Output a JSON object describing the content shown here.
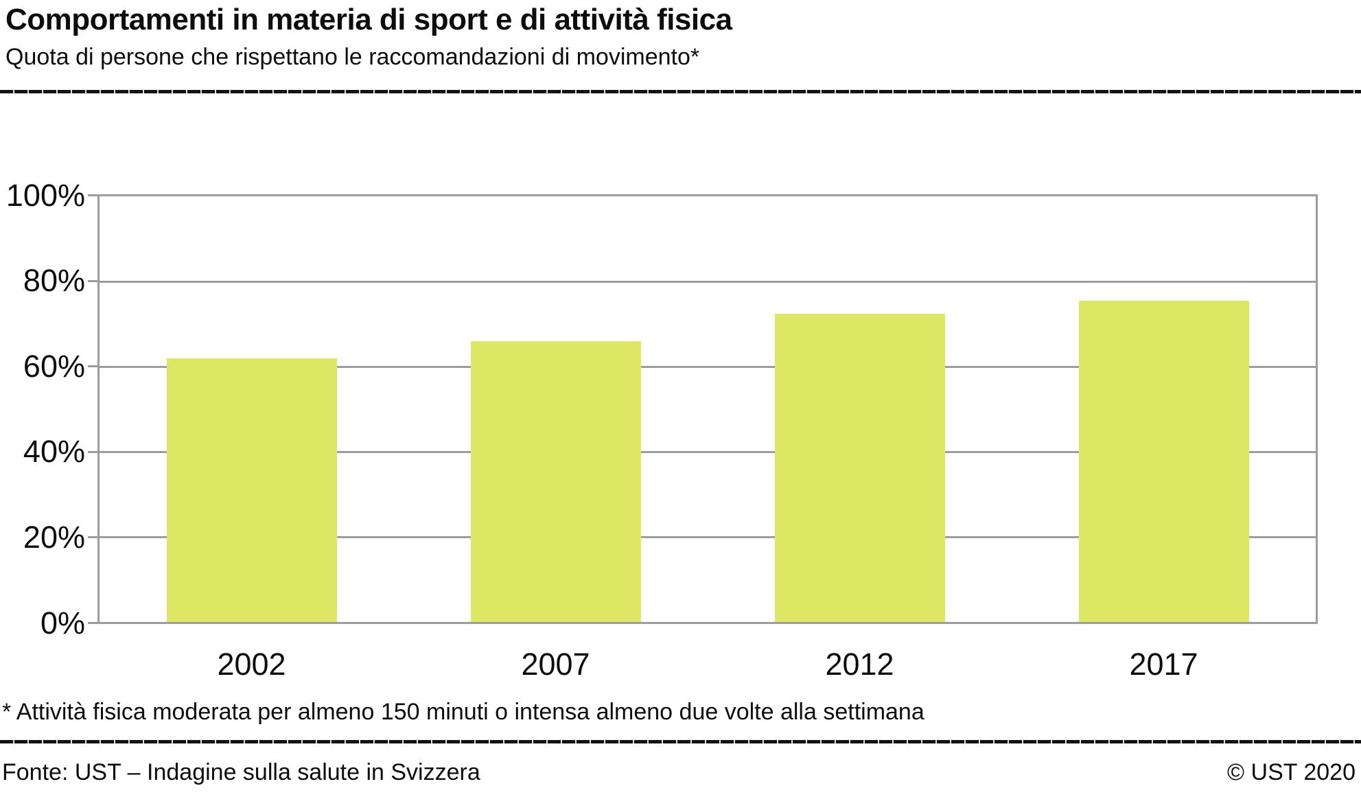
{
  "header": {
    "title": "Comportamenti in materia di sport e di attività fisica",
    "subtitle": "Quota di persone che rispettano le raccomandazioni di movimento*"
  },
  "footnote": "* Attività fisica moderata per almeno 150 minuti o intensa almeno due volte alla settimana",
  "footer": {
    "source": "Fonte: UST – Indagine sulla salute in Svizzera",
    "copyright": "© UST 2020"
  },
  "colors": {
    "bar": "#dde763",
    "grid": "#9d9d9d",
    "rule": "#121212",
    "text": "#0d0d0d"
  },
  "chart_data": {
    "type": "bar",
    "categories": [
      "2002",
      "2007",
      "2012",
      "2017"
    ],
    "values": [
      62,
      66,
      72.5,
      75.5
    ],
    "unit": "%",
    "title": "Comportamenti in materia di sport e di attività fisica",
    "subtitle": "Quota di persone che rispettano le raccomandazioni di movimento*",
    "xlabel": "",
    "ylabel": "",
    "ylim": [
      0,
      100
    ],
    "ytick_step": 20,
    "ytick_labels": [
      "0%",
      "20%",
      "40%",
      "60%",
      "80%",
      "100%"
    ],
    "grid": true,
    "legend": false,
    "bar_color": "#dde763"
  }
}
